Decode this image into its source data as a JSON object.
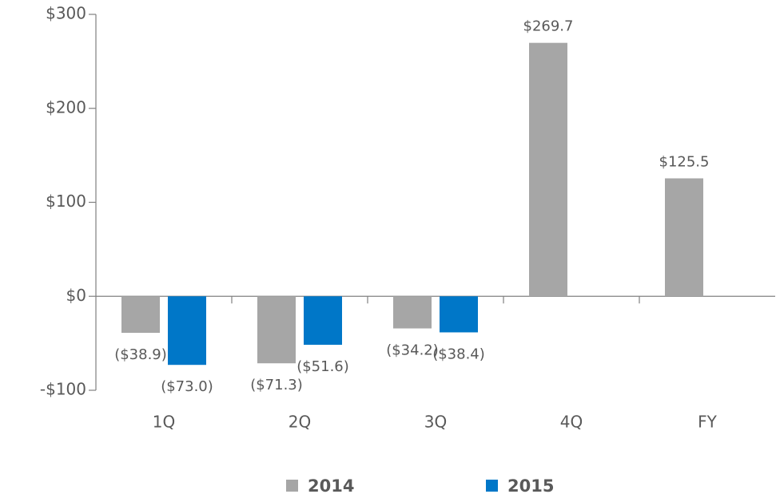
{
  "chart_data": {
    "type": "bar",
    "categories": [
      "1Q",
      "2Q",
      "3Q",
      "4Q",
      "FY"
    ],
    "series": [
      {
        "name": "2014",
        "color": "#a6a6a6",
        "values": [
          -38.9,
          -71.3,
          -34.2,
          269.7,
          125.5
        ],
        "value_labels": [
          "($38.9)",
          "($71.3)",
          "($34.2)",
          "$269.7",
          "$125.5"
        ]
      },
      {
        "name": "2015",
        "color": "#0077c8",
        "values": [
          -73.0,
          -51.6,
          -38.4,
          null,
          null
        ],
        "value_labels": [
          "($73.0)",
          "($51.6)",
          "($38.4)",
          null,
          null
        ]
      }
    ],
    "ylim": [
      -100,
      300
    ],
    "yticks": [
      {
        "value": -100,
        "label": "-$100"
      },
      {
        "value": 0,
        "label": "$0"
      },
      {
        "value": 100,
        "label": "$100"
      },
      {
        "value": 200,
        "label": "$200"
      },
      {
        "value": 300,
        "label": "$300"
      }
    ],
    "legend": "bottom"
  }
}
